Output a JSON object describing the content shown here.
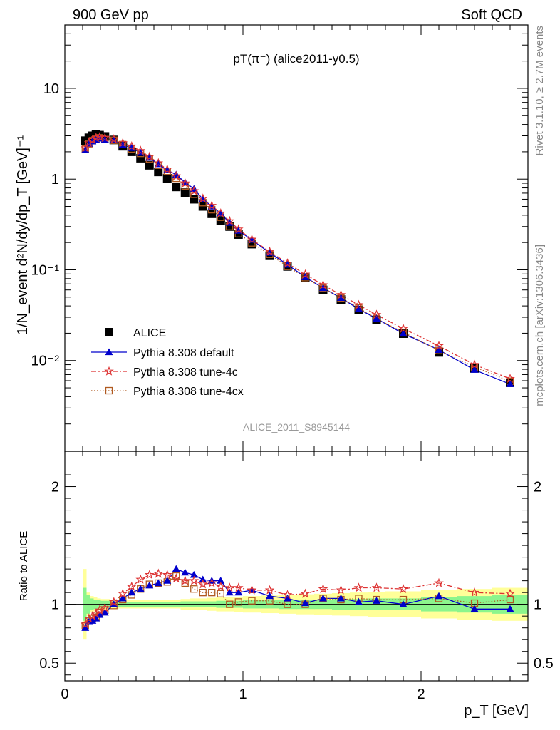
{
  "header": {
    "left": "900 GeV pp",
    "right": "Soft QCD",
    "side_top": "Rivet 3.1.10, ≥ 2.7M events",
    "side_bottom": "mcplots.cern.ch [arXiv:1306.3436]",
    "watermark": "ALICE_2011_S8945144"
  },
  "chart_data": [
    {
      "type": "scatter",
      "panel": "main",
      "title": "pT(π⁻) (alice2011-y0.5)",
      "ylabel": "1/N_event d²N/dy/dp_T [GeV]⁻¹",
      "xlabel": "p_T [GeV]",
      "yscale": "log",
      "xlim": [
        0,
        2.6
      ],
      "ylim": [
        0.001,
        50
      ],
      "y_tick_labels": [
        "10⁻²",
        "10⁻¹",
        "1",
        "10"
      ],
      "x": [
        0.115,
        0.135,
        0.155,
        0.175,
        0.195,
        0.225,
        0.275,
        0.325,
        0.375,
        0.425,
        0.475,
        0.525,
        0.575,
        0.625,
        0.675,
        0.725,
        0.775,
        0.825,
        0.875,
        0.925,
        0.975,
        1.05,
        1.15,
        1.25,
        1.35,
        1.45,
        1.55,
        1.65,
        1.75,
        1.9,
        2.1,
        2.3,
        2.5
      ],
      "legend": "middle-left",
      "series": [
        {
          "name": "ALICE",
          "marker": "filled-square",
          "color": "#000000",
          "values": [
            2.65,
            2.85,
            3.0,
            3.1,
            3.05,
            2.95,
            2.7,
            2.3,
            2.0,
            1.7,
            1.42,
            1.2,
            1.02,
            0.82,
            0.71,
            0.6,
            0.5,
            0.415,
            0.35,
            0.3,
            0.245,
            0.192,
            0.143,
            0.109,
            0.082,
            0.06,
            0.047,
            0.036,
            0.028,
            0.0198,
            0.0123,
            0.0082,
            0.0057
          ]
        },
        {
          "name": "Pythia 8.308 default",
          "marker": "filled-triangle",
          "color": "#0000cc",
          "line": "solid",
          "values": [
            2.1,
            2.45,
            2.6,
            2.7,
            2.8,
            2.72,
            2.68,
            2.4,
            2.2,
            1.95,
            1.72,
            1.46,
            1.26,
            1.12,
            0.92,
            0.78,
            0.6,
            0.5,
            0.42,
            0.33,
            0.27,
            0.214,
            0.154,
            0.114,
            0.083,
            0.063,
            0.049,
            0.037,
            0.029,
            0.0198,
            0.0131,
            0.0079,
            0.0055
          ]
        },
        {
          "name": "Pythia 8.308 tune-4c",
          "marker": "open-star",
          "color": "#dd3333",
          "line": "dashdot",
          "values": [
            2.2,
            2.5,
            2.7,
            2.85,
            2.9,
            2.85,
            2.75,
            2.5,
            2.3,
            2.05,
            1.77,
            1.5,
            1.28,
            1.08,
            0.9,
            0.74,
            0.61,
            0.51,
            0.42,
            0.345,
            0.28,
            0.216,
            0.159,
            0.118,
            0.089,
            0.068,
            0.053,
            0.041,
            0.032,
            0.0225,
            0.0145,
            0.009,
            0.0063
          ]
        },
        {
          "name": "Pythia 8.308 tune-4cx",
          "marker": "open-square",
          "color": "#b05a20",
          "line": "dotted",
          "values": [
            2.15,
            2.45,
            2.65,
            2.75,
            2.85,
            2.8,
            2.68,
            2.4,
            2.15,
            1.92,
            1.67,
            1.42,
            1.22,
            1.02,
            0.84,
            0.68,
            0.55,
            0.46,
            0.38,
            0.3,
            0.25,
            0.198,
            0.148,
            0.109,
            0.082,
            0.063,
            0.049,
            0.038,
            0.029,
            0.0205,
            0.0129,
            0.0085,
            0.0059
          ]
        }
      ]
    },
    {
      "type": "line",
      "panel": "ratio",
      "ylabel": "Ratio to ALICE",
      "xlabel": "p_T [GeV]",
      "xlim": [
        0,
        2.6
      ],
      "ylim": [
        0.35,
        2.3
      ],
      "x_tick_labels": [
        "0",
        "1",
        "2"
      ],
      "y_tick_labels": [
        "0.5",
        "1",
        "2"
      ],
      "x": [
        0.115,
        0.135,
        0.155,
        0.175,
        0.195,
        0.225,
        0.275,
        0.325,
        0.375,
        0.425,
        0.475,
        0.525,
        0.575,
        0.625,
        0.675,
        0.725,
        0.775,
        0.825,
        0.875,
        0.925,
        0.975,
        1.05,
        1.15,
        1.25,
        1.35,
        1.45,
        1.55,
        1.65,
        1.75,
        1.9,
        2.1,
        2.3,
        2.5
      ],
      "bin_edges": [
        0.1,
        0.12,
        0.14,
        0.16,
        0.18,
        0.2,
        0.25,
        0.3,
        0.35,
        0.4,
        0.45,
        0.5,
        0.55,
        0.6,
        0.65,
        0.7,
        0.75,
        0.8,
        0.85,
        0.9,
        0.95,
        1.0,
        1.1,
        1.2,
        1.3,
        1.4,
        1.5,
        1.6,
        1.7,
        1.8,
        2.0,
        2.2,
        2.4,
        2.6
      ],
      "band_inner": [
        0.14,
        0.08,
        0.05,
        0.04,
        0.035,
        0.03,
        0.025,
        0.022,
        0.02,
        0.02,
        0.02,
        0.02,
        0.02,
        0.02,
        0.025,
        0.025,
        0.025,
        0.025,
        0.03,
        0.03,
        0.03,
        0.035,
        0.035,
        0.04,
        0.04,
        0.04,
        0.045,
        0.045,
        0.05,
        0.05,
        0.06,
        0.07,
        0.08
      ],
      "band_outer": [
        0.3,
        0.1,
        0.07,
        0.06,
        0.05,
        0.045,
        0.04,
        0.035,
        0.035,
        0.035,
        0.035,
        0.035,
        0.035,
        0.035,
        0.045,
        0.05,
        0.05,
        0.055,
        0.06,
        0.06,
        0.065,
        0.07,
        0.075,
        0.08,
        0.085,
        0.09,
        0.095,
        0.1,
        0.105,
        0.11,
        0.12,
        0.13,
        0.14
      ],
      "band_colors": {
        "inner": "#8cf58c",
        "outer": "#ffff99"
      },
      "series": [
        {
          "name": "Pythia 8.308 default",
          "marker": "filled-triangle",
          "color": "#0000cc",
          "line": "solid",
          "values": [
            0.8,
            0.85,
            0.86,
            0.88,
            0.91,
            0.93,
            1.0,
            1.05,
            1.1,
            1.13,
            1.16,
            1.18,
            1.2,
            1.3,
            1.27,
            1.25,
            1.21,
            1.2,
            1.2,
            1.1,
            1.1,
            1.12,
            1.07,
            1.05,
            1.01,
            1.05,
            1.05,
            1.02,
            1.03,
            1.0,
            1.07,
            0.96,
            0.96
          ]
        },
        {
          "name": "Pythia 8.308 tune-4c",
          "marker": "open-star",
          "color": "#dd3333",
          "line": "dashdot",
          "values": [
            0.83,
            0.88,
            0.9,
            0.92,
            0.95,
            0.97,
            1.02,
            1.09,
            1.15,
            1.21,
            1.25,
            1.26,
            1.25,
            1.22,
            1.2,
            1.2,
            1.17,
            1.18,
            1.15,
            1.14,
            1.14,
            1.12,
            1.12,
            1.08,
            1.09,
            1.13,
            1.12,
            1.14,
            1.14,
            1.13,
            1.18,
            1.1,
            1.09
          ]
        },
        {
          "name": "Pythia 8.308 tune-4cx",
          "marker": "open-square",
          "color": "#b05a20",
          "line": "dotted",
          "values": [
            0.82,
            0.86,
            0.88,
            0.89,
            0.93,
            0.95,
            0.99,
            1.04,
            1.08,
            1.13,
            1.17,
            1.18,
            1.19,
            1.24,
            1.18,
            1.13,
            1.1,
            1.1,
            1.09,
            1.0,
            1.02,
            1.03,
            1.03,
            1.0,
            1.0,
            1.05,
            1.04,
            1.05,
            1.04,
            1.04,
            1.05,
            1.01,
            1.04
          ]
        }
      ]
    }
  ]
}
